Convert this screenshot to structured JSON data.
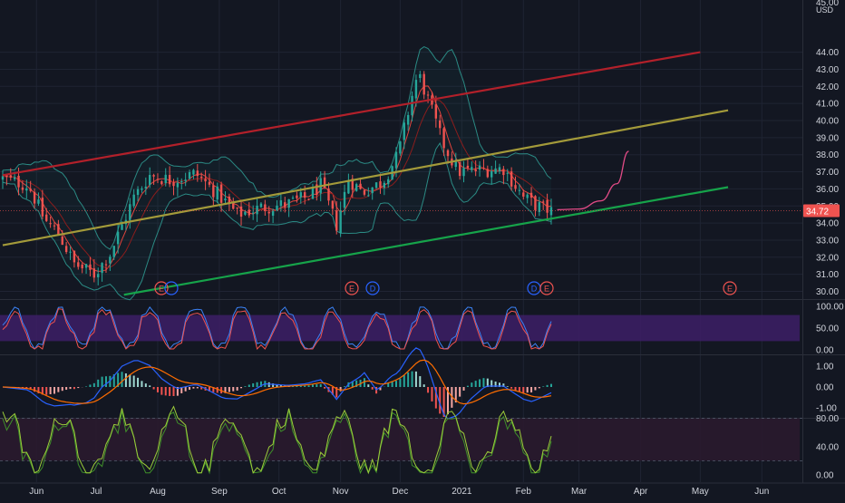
{
  "colors": {
    "background": "#131722",
    "grid": "#1f2433",
    "separator": "#2a2e39",
    "axis_text": "#d1d4dc",
    "up_candle": "#26a69a",
    "down_candle": "#ef5350",
    "bollinger": "#2b8a84",
    "ma_fast": "#e0433d",
    "ma_slow": "#8b1d1d",
    "channel_upper": "#b2202a",
    "channel_middle": "#a39a3a",
    "channel_lower": "#16a34a",
    "projection": "#e24b86",
    "price_badge": "#ef5350",
    "stoch_band": "#3d1f66",
    "stoch_k": "#3b82f6",
    "stoch_d": "#ef5350",
    "macd_line": "#2962ff",
    "signal_line": "#ff6d00",
    "rsi_line": "#9ccc3a",
    "rsi_alt": "#3f8f2a",
    "rsi_band": "#2a1a2e",
    "earnings": "#ef5350",
    "dividend": "#2962ff"
  },
  "price_axis": {
    "currency": "USD",
    "top_label": "45.00",
    "ticks": [
      "44.00",
      "43.00",
      "42.00",
      "41.00",
      "40.00",
      "39.00",
      "38.00",
      "37.00",
      "36.00",
      "35.00",
      "34.00",
      "33.00",
      "32.00",
      "31.00",
      "30.00"
    ]
  },
  "current_price": "34.72",
  "time_axis": [
    "Jun",
    "Jul",
    "Aug",
    "Sep",
    "Oct",
    "Nov",
    "Dec",
    "2021",
    "Feb",
    "Mar",
    "Apr",
    "May",
    "Jun"
  ],
  "event_markers": [
    {
      "label": "E",
      "type": "earnings",
      "month": "Aug"
    },
    {
      "label": "E",
      "type": "earnings",
      "month": "Nov"
    },
    {
      "label": "D",
      "type": "dividend",
      "month": "Nov"
    },
    {
      "label": "D",
      "type": "dividend",
      "month": "Feb"
    },
    {
      "label": "E",
      "type": "earnings",
      "month": "Feb"
    },
    {
      "label": "E",
      "type": "earnings",
      "month": "May"
    }
  ],
  "stoch_axis": [
    "100.00",
    "50.00",
    "0.00"
  ],
  "macd_axis": [
    "1.00",
    "0.00",
    "-1.00"
  ],
  "rsi_axis": [
    "80.00",
    "40.00",
    "0.00"
  ],
  "chart_data": {
    "type": "candlestick",
    "x_range": [
      "2020-05-15",
      "2021-06-15"
    ],
    "price_range": [
      30.0,
      45.0
    ],
    "close_series_keypoints": [
      [
        "2020-05-15",
        36.6
      ],
      [
        "2020-05-28",
        36.2
      ],
      [
        "2020-06-05",
        34.2
      ],
      [
        "2020-06-12",
        33.4
      ],
      [
        "2020-06-20",
        31.6
      ],
      [
        "2020-06-30",
        31.0
      ],
      [
        "2020-07-08",
        32.2
      ],
      [
        "2020-07-20",
        35.5
      ],
      [
        "2020-07-28",
        36.8
      ],
      [
        "2020-08-08",
        36.5
      ],
      [
        "2020-08-20",
        36.9
      ],
      [
        "2020-09-01",
        35.6
      ],
      [
        "2020-09-10",
        34.5
      ],
      [
        "2020-09-22",
        34.9
      ],
      [
        "2020-10-05",
        35.1
      ],
      [
        "2020-10-15",
        35.5
      ],
      [
        "2020-10-22",
        36.2
      ],
      [
        "2020-10-30",
        33.9
      ],
      [
        "2020-11-05",
        36.6
      ],
      [
        "2020-11-12",
        35.8
      ],
      [
        "2020-11-22",
        36.4
      ],
      [
        "2020-11-30",
        38.0
      ],
      [
        "2020-12-06",
        41.0
      ],
      [
        "2020-12-10",
        42.8
      ],
      [
        "2020-12-15",
        41.2
      ],
      [
        "2020-12-22",
        38.8
      ],
      [
        "2020-12-30",
        37.0
      ],
      [
        "2021-01-10",
        37.1
      ],
      [
        "2021-01-22",
        37.2
      ],
      [
        "2021-02-01",
        35.5
      ],
      [
        "2021-02-08",
        35.0
      ],
      [
        "2021-02-15",
        34.72
      ]
    ],
    "indicators": [
      "Bollinger Bands",
      "Moving Averages",
      "Stochastic RSI",
      "MACD",
      "RSI"
    ],
    "trend_channel": {
      "upper": [
        [
          "2020-05-15",
          36.8
        ],
        [
          "2021-05-01",
          44.0
        ]
      ],
      "middle": [
        [
          "2020-05-15",
          32.7
        ],
        [
          "2021-05-15",
          40.6
        ]
      ],
      "lower": [
        [
          "2020-07-15",
          29.8
        ],
        [
          "2021-05-15",
          36.1
        ]
      ]
    },
    "projection": [
      [
        "2021-02-18",
        34.78
      ],
      [
        "2021-03-01",
        34.82
      ],
      [
        "2021-03-12",
        35.3
      ],
      [
        "2021-03-20",
        36.3
      ],
      [
        "2021-03-26",
        38.2
      ]
    ]
  }
}
